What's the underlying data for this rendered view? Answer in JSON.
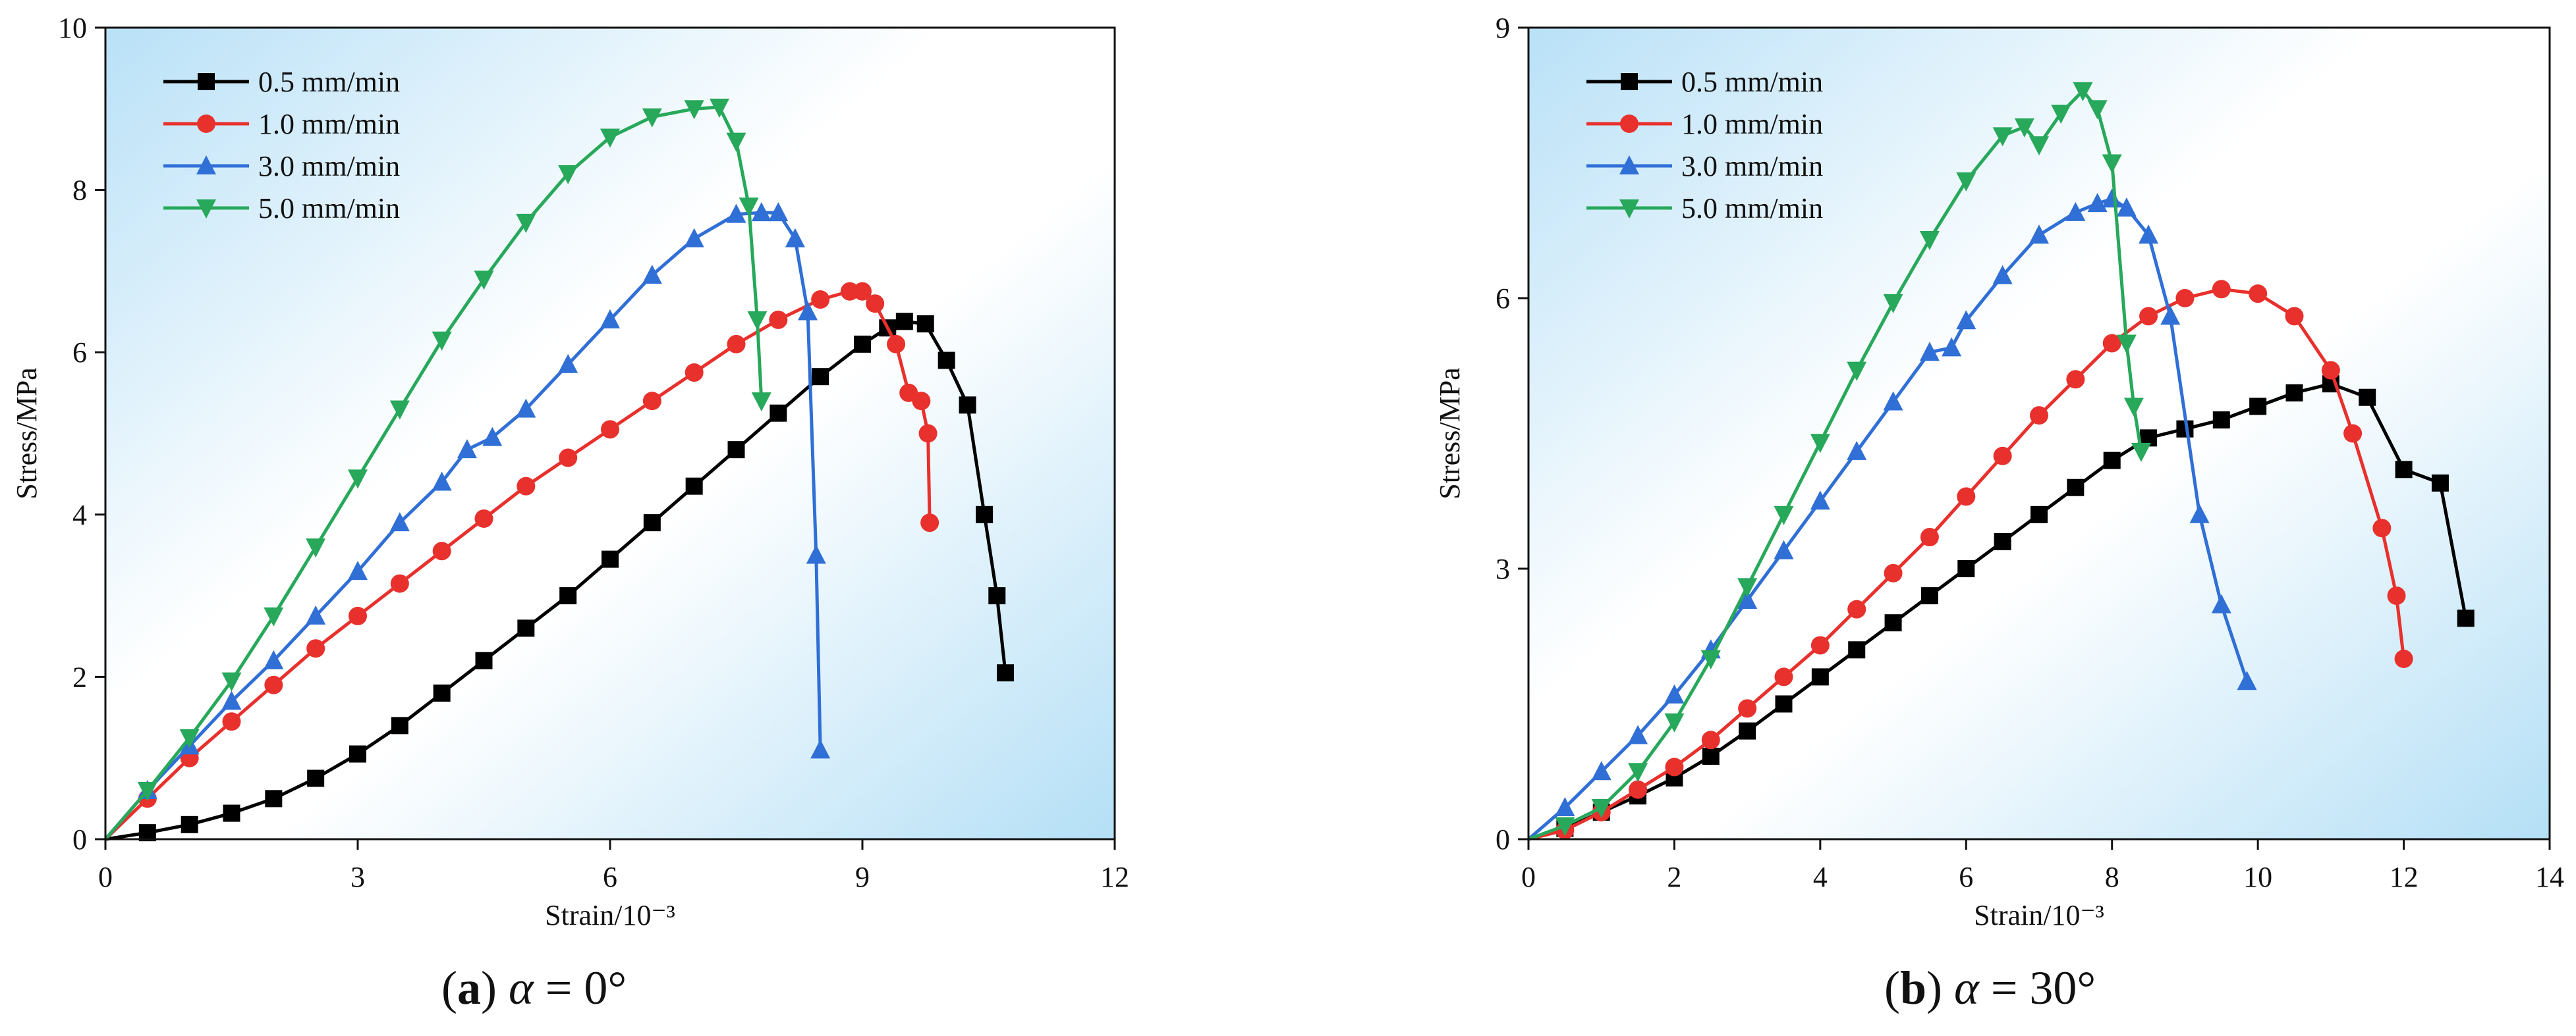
{
  "chart_data": [
    {
      "type": "line",
      "panel": "a",
      "caption": {
        "label": "a",
        "symbol": "α",
        "value": "= 0°"
      },
      "xlabel": "Strain/10⁻³",
      "ylabel": "Stress/MPa",
      "xlim": [
        0,
        12
      ],
      "ylim": [
        0,
        10
      ],
      "xticks": [
        0,
        3,
        6,
        9,
        12
      ],
      "yticks": [
        0,
        2,
        4,
        6,
        8,
        10
      ],
      "legend_position": "top-left",
      "series": [
        {
          "name": "0.5 mm/min",
          "color": "#000000",
          "marker": "square",
          "x": [
            0,
            0.5,
            1.0,
            1.5,
            2.0,
            2.5,
            3.0,
            3.5,
            4.0,
            4.5,
            5.0,
            5.5,
            6.0,
            6.5,
            7.0,
            7.5,
            8.0,
            8.5,
            9.0,
            9.3,
            9.5,
            9.75,
            10.0,
            10.25,
            10.45,
            10.6,
            10.7
          ],
          "y": [
            0,
            0.08,
            0.18,
            0.32,
            0.5,
            0.75,
            1.05,
            1.4,
            1.8,
            2.2,
            2.6,
            3.0,
            3.45,
            3.9,
            4.35,
            4.8,
            5.25,
            5.7,
            6.1,
            6.3,
            6.38,
            6.35,
            5.9,
            5.35,
            4.0,
            3.0,
            2.05
          ]
        },
        {
          "name": "1.0 mm/min",
          "color": "#e8302c",
          "marker": "circle",
          "x": [
            0,
            0.5,
            1.0,
            1.5,
            2.0,
            2.5,
            3.0,
            3.5,
            4.0,
            4.5,
            5.0,
            5.5,
            6.0,
            6.5,
            7.0,
            7.5,
            8.0,
            8.5,
            8.85,
            9.0,
            9.15,
            9.4,
            9.55,
            9.7,
            9.78,
            9.8
          ],
          "y": [
            0,
            0.5,
            1.0,
            1.45,
            1.9,
            2.35,
            2.75,
            3.15,
            3.55,
            3.95,
            4.35,
            4.7,
            5.05,
            5.4,
            5.75,
            6.1,
            6.4,
            6.65,
            6.75,
            6.75,
            6.6,
            6.1,
            5.5,
            5.4,
            5.0,
            3.9
          ]
        },
        {
          "name": "3.0 mm/min",
          "color": "#2f6fd6",
          "marker": "triangle-up",
          "x": [
            0,
            0.5,
            1.0,
            1.5,
            2.0,
            2.5,
            3.0,
            3.5,
            4.0,
            4.3,
            4.6,
            5.0,
            5.5,
            6.0,
            6.5,
            7.0,
            7.5,
            7.8,
            8.0,
            8.2,
            8.35,
            8.45,
            8.5
          ],
          "y": [
            0,
            0.6,
            1.15,
            1.7,
            2.2,
            2.75,
            3.3,
            3.9,
            4.4,
            4.8,
            4.95,
            5.3,
            5.85,
            6.4,
            6.95,
            7.4,
            7.7,
            7.72,
            7.72,
            7.4,
            6.5,
            3.5,
            1.1
          ]
        },
        {
          "name": "5.0 mm/min",
          "color": "#27a85a",
          "marker": "triangle-down",
          "x": [
            0,
            0.5,
            1.0,
            1.5,
            2.0,
            2.5,
            3.0,
            3.5,
            4.0,
            4.5,
            5.0,
            5.5,
            6.0,
            6.5,
            7.0,
            7.3,
            7.5,
            7.65,
            7.75,
            7.8
          ],
          "y": [
            0,
            0.6,
            1.25,
            1.95,
            2.75,
            3.6,
            4.45,
            5.3,
            6.15,
            6.9,
            7.6,
            8.2,
            8.65,
            8.9,
            9.0,
            9.02,
            8.6,
            7.8,
            6.4,
            5.4
          ]
        }
      ]
    },
    {
      "type": "line",
      "panel": "b",
      "caption": {
        "label": "b",
        "symbol": "α",
        "value": "= 30°"
      },
      "xlabel": "Strain/10⁻³",
      "ylabel": "Stress/MPa",
      "xlim": [
        0,
        14
      ],
      "ylim": [
        0,
        9
      ],
      "xticks": [
        0,
        2,
        4,
        6,
        8,
        10,
        12,
        14
      ],
      "yticks": [
        0,
        3,
        6,
        9
      ],
      "legend_position": "top-left",
      "series": [
        {
          "name": "0.5 mm/min",
          "color": "#000000",
          "marker": "square",
          "x": [
            0,
            0.5,
            1.0,
            1.5,
            2.0,
            2.5,
            3.0,
            3.5,
            4.0,
            4.5,
            5.0,
            5.5,
            6.0,
            6.5,
            7.0,
            7.5,
            8.0,
            8.5,
            9.0,
            9.5,
            10.0,
            10.5,
            11.0,
            11.5,
            12.0,
            12.5,
            12.85
          ],
          "y": [
            0,
            0.12,
            0.3,
            0.48,
            0.68,
            0.92,
            1.2,
            1.5,
            1.8,
            2.1,
            2.4,
            2.7,
            3.0,
            3.3,
            3.6,
            3.9,
            4.2,
            4.45,
            4.55,
            4.65,
            4.8,
            4.95,
            5.05,
            4.9,
            4.1,
            3.95,
            2.45
          ]
        },
        {
          "name": "1.0 mm/min",
          "color": "#e8302c",
          "marker": "circle",
          "x": [
            0,
            0.5,
            1.0,
            1.5,
            2.0,
            2.5,
            3.0,
            3.5,
            4.0,
            4.5,
            5.0,
            5.5,
            6.0,
            6.5,
            7.0,
            7.5,
            8.0,
            8.5,
            9.0,
            9.5,
            10.0,
            10.5,
            11.0,
            11.3,
            11.7,
            11.9,
            12.0
          ],
          "y": [
            0,
            0.1,
            0.3,
            0.55,
            0.8,
            1.1,
            1.45,
            1.8,
            2.15,
            2.55,
            2.95,
            3.35,
            3.8,
            4.25,
            4.7,
            5.1,
            5.5,
            5.8,
            6.0,
            6.1,
            6.05,
            5.8,
            5.2,
            4.5,
            3.45,
            2.7,
            2.0
          ]
        },
        {
          "name": "3.0 mm/min",
          "color": "#2f6fd6",
          "marker": "triangle-up",
          "x": [
            0,
            0.5,
            1.0,
            1.5,
            2.0,
            2.5,
            3.0,
            3.5,
            4.0,
            4.5,
            5.0,
            5.5,
            5.8,
            6.0,
            6.5,
            7.0,
            7.5,
            7.8,
            8.0,
            8.2,
            8.5,
            8.8,
            9.2,
            9.5,
            9.85
          ],
          "y": [
            0,
            0.35,
            0.75,
            1.15,
            1.6,
            2.1,
            2.65,
            3.2,
            3.75,
            4.3,
            4.85,
            5.4,
            5.45,
            5.75,
            6.25,
            6.7,
            6.95,
            7.05,
            7.1,
            7.0,
            6.7,
            5.8,
            3.6,
            2.6,
            1.75
          ]
        },
        {
          "name": "5.0 mm/min",
          "color": "#27a85a",
          "marker": "triangle-down",
          "x": [
            0,
            0.5,
            1.0,
            1.5,
            2.0,
            2.5,
            3.0,
            3.5,
            4.0,
            4.5,
            5.0,
            5.5,
            6.0,
            6.5,
            6.8,
            7.0,
            7.3,
            7.6,
            7.8,
            8.0,
            8.2,
            8.3,
            8.4
          ],
          "y": [
            0,
            0.15,
            0.35,
            0.75,
            1.3,
            2.0,
            2.8,
            3.6,
            4.4,
            5.2,
            5.95,
            6.65,
            7.3,
            7.8,
            7.9,
            7.7,
            8.05,
            8.3,
            8.1,
            7.5,
            5.5,
            4.8,
            4.3
          ]
        }
      ]
    }
  ]
}
